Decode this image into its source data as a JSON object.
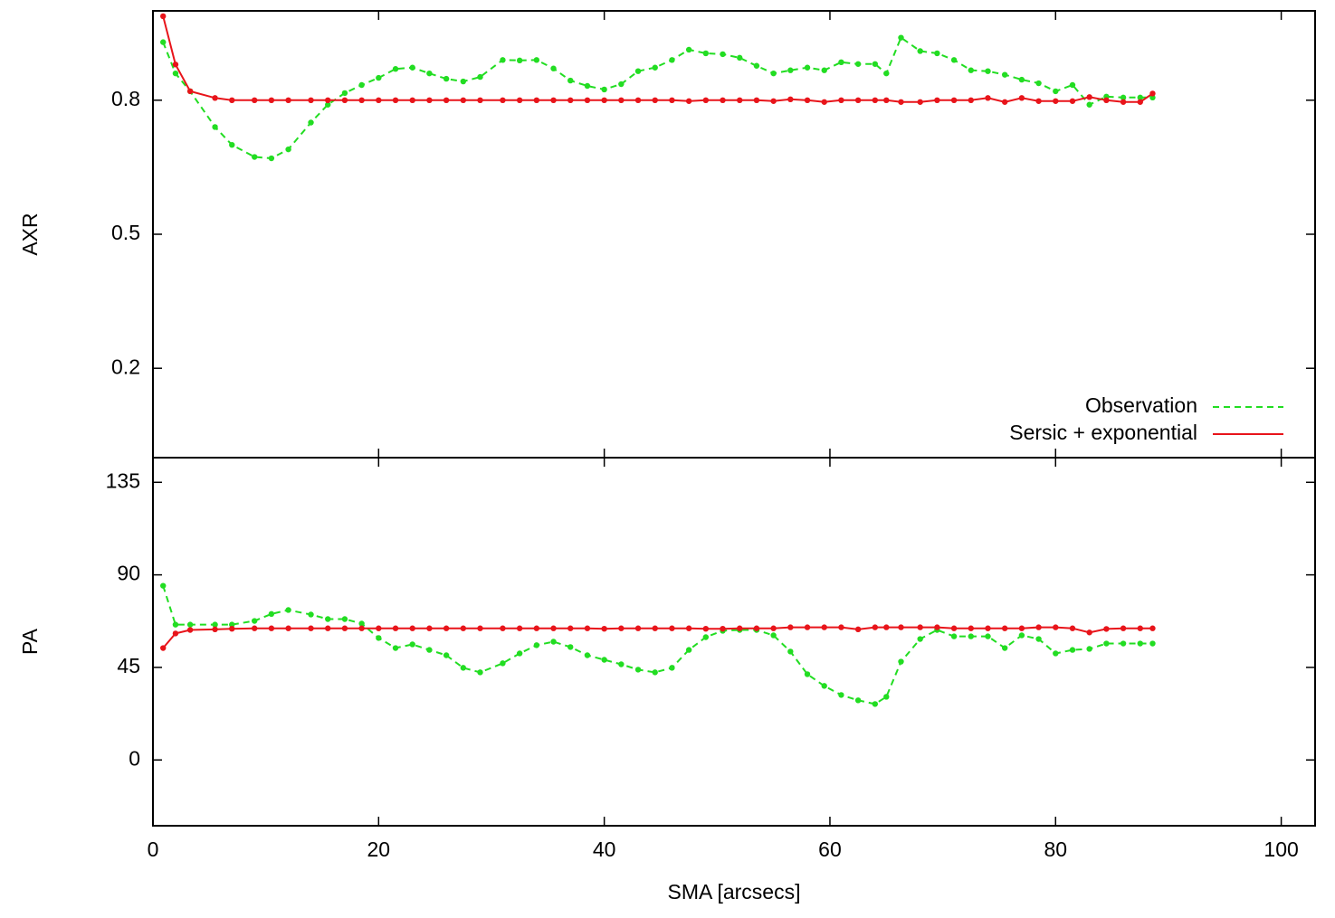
{
  "chart_data": [
    {
      "type": "line",
      "ylabel": "AXR",
      "legend": "bottom right",
      "x": [
        0.9,
        2,
        3.3,
        5.5,
        7,
        9,
        10.5,
        12,
        14,
        15.5,
        17,
        18.5,
        20,
        21.5,
        23,
        24.5,
        26,
        27.5,
        29,
        31,
        32.5,
        34,
        35.5,
        37,
        38.5,
        40,
        41.5,
        43,
        44.5,
        46,
        47.5,
        49,
        50.5,
        52,
        53.5,
        55,
        56.5,
        58,
        59.5,
        61,
        62.5,
        64,
        65,
        66.3,
        68,
        69.5,
        71,
        72.5,
        74,
        75.5,
        77,
        78.5,
        80,
        81.5,
        83,
        84.5,
        86,
        87.5,
        88.6
      ],
      "xlim": [
        0,
        103
      ],
      "ylim": [
        0,
        1
      ],
      "yticks": [
        0.2,
        0.5,
        0.8
      ],
      "series": [
        {
          "name": "Observation",
          "color": "#22dd22",
          "values": [
            0.93,
            0.86,
            0.82,
            0.74,
            0.7,
            0.673,
            0.67,
            0.69,
            0.75,
            0.79,
            0.816,
            0.834,
            0.85,
            0.87,
            0.873,
            0.86,
            0.848,
            0.842,
            0.852,
            0.89,
            0.889,
            0.89,
            0.871,
            0.844,
            0.832,
            0.824,
            0.836,
            0.865,
            0.873,
            0.89,
            0.913,
            0.905,
            0.903,
            0.895,
            0.877,
            0.86,
            0.867,
            0.873,
            0.867,
            0.885,
            0.881,
            0.881,
            0.86,
            0.94,
            0.91,
            0.905,
            0.89,
            0.867,
            0.865,
            0.857,
            0.846,
            0.838,
            0.82,
            0.834,
            0.79,
            0.808,
            0.806,
            0.806,
            0.806
          ]
        },
        {
          "name": "Sersic + exponential",
          "color": "#e8141a",
          "values": [
            0.988,
            0.88,
            0.82,
            0.805,
            0.8,
            0.8,
            0.8,
            0.8,
            0.8,
            0.8,
            0.8,
            0.8,
            0.8,
            0.8,
            0.8,
            0.8,
            0.8,
            0.8,
            0.8,
            0.8,
            0.8,
            0.8,
            0.8,
            0.8,
            0.8,
            0.8,
            0.8,
            0.8,
            0.8,
            0.8,
            0.798,
            0.8,
            0.8,
            0.8,
            0.8,
            0.798,
            0.802,
            0.8,
            0.796,
            0.8,
            0.8,
            0.8,
            0.8,
            0.796,
            0.796,
            0.8,
            0.8,
            0.8,
            0.805,
            0.796,
            0.805,
            0.798,
            0.798,
            0.798,
            0.807,
            0.8,
            0.796,
            0.796,
            0.815
          ]
        }
      ]
    },
    {
      "type": "line",
      "ylabel": "PA",
      "xlabel": "SMA [arcsecs]",
      "x": [
        0.9,
        2,
        3.3,
        5.5,
        7,
        9,
        10.5,
        12,
        14,
        15.5,
        17,
        18.5,
        20,
        21.5,
        23,
        24.5,
        26,
        27.5,
        29,
        31,
        32.5,
        34,
        35.5,
        37,
        38.5,
        40,
        41.5,
        43,
        44.5,
        46,
        47.5,
        49,
        50.5,
        52,
        53.5,
        55,
        56.5,
        58,
        59.5,
        61,
        62.5,
        64,
        65,
        66.3,
        68,
        69.5,
        71,
        72.5,
        74,
        75.5,
        77,
        78.5,
        80,
        81.5,
        83,
        84.5,
        86,
        87.5,
        88.6
      ],
      "xlim": [
        0,
        103
      ],
      "xticks": [
        0,
        20,
        40,
        60,
        80,
        100
      ],
      "ylim": [
        -32,
        147
      ],
      "yticks": [
        0,
        45,
        90,
        135
      ],
      "series": [
        {
          "color": "#22dd22",
          "values": [
            84.7,
            65.8,
            65.8,
            65.8,
            65.8,
            67.6,
            71,
            72.9,
            70.7,
            68.5,
            68.5,
            66.3,
            59.3,
            54.4,
            56.2,
            53.5,
            50.9,
            44.8,
            42.6,
            47,
            51.8,
            55.8,
            57.5,
            54.9,
            50.9,
            48.7,
            46.5,
            43.9,
            42.6,
            44.8,
            53.5,
            59.7,
            62.8,
            63.2,
            63.2,
            60.6,
            52.7,
            41.7,
            36,
            31.6,
            29,
            27.2,
            30.7,
            47.8,
            58.8,
            63.2,
            60.1,
            60.1,
            60.1,
            54.4,
            60.6,
            58.8,
            51.8,
            53.5,
            54,
            56.6,
            56.6,
            56.6,
            56.6
          ]
        },
        {
          "color": "#e8141a",
          "values": [
            54.4,
            61.5,
            63.2,
            63.5,
            63.8,
            64,
            64,
            64,
            64,
            64,
            64,
            64,
            64,
            64,
            64,
            64,
            64,
            64,
            64,
            64,
            64,
            64,
            64,
            64,
            64,
            63.8,
            64,
            64,
            64,
            64,
            64,
            63.8,
            63.8,
            64,
            64,
            64,
            64.5,
            64.5,
            64.5,
            64.5,
            63.5,
            64.5,
            64.5,
            64.5,
            64.5,
            64.5,
            64,
            64,
            64,
            64,
            64,
            64.5,
            64.5,
            64,
            62,
            63.7,
            64,
            64,
            64
          ]
        }
      ]
    }
  ]
}
